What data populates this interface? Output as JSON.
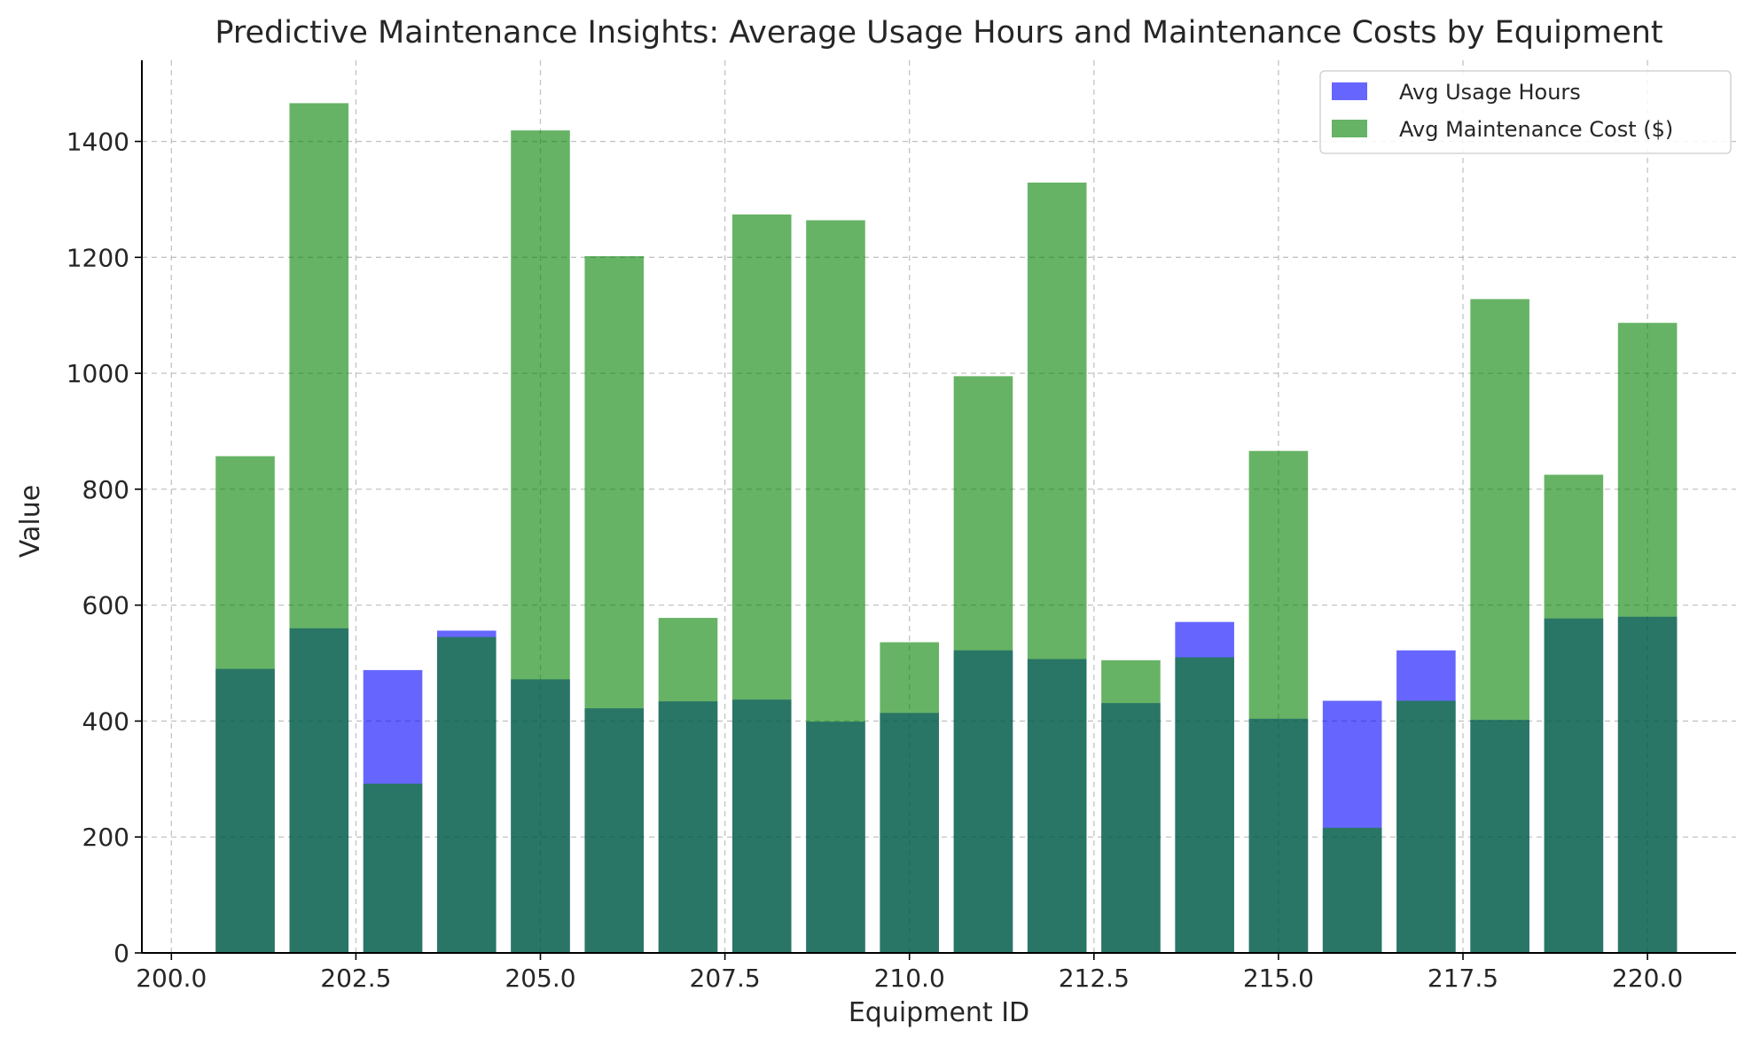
{
  "chart_data": {
    "type": "bar",
    "title": "Predictive Maintenance Insights: Average Usage Hours and Maintenance Costs by Equipment",
    "xlabel": "Equipment ID",
    "ylabel": "Value",
    "xlim": [
      199.6,
      221.2
    ],
    "ylim": [
      0,
      1540
    ],
    "x_ticks": [
      "200.0",
      "202.5",
      "205.0",
      "207.5",
      "210.0",
      "212.5",
      "215.0",
      "217.5",
      "220.0"
    ],
    "y_ticks": [
      "0",
      "200",
      "400",
      "600",
      "800",
      "1000",
      "1200",
      "1400"
    ],
    "grid": true,
    "legend_position": "top-right",
    "x": [
      201,
      202,
      203,
      204,
      205,
      206,
      207,
      208,
      209,
      210,
      211,
      212,
      213,
      214,
      215,
      216,
      217,
      218,
      219,
      220
    ],
    "series": [
      {
        "name": "Avg Usage Hours",
        "color": "#0000ff",
        "opacity": 0.6,
        "values": [
          490,
          560,
          488,
          556,
          472,
          422,
          434,
          437,
          399,
          414,
          522,
          507,
          431,
          571,
          404,
          435,
          522,
          402,
          577,
          580
        ]
      },
      {
        "name": "Avg Maintenance Cost ($)",
        "color": "#008000",
        "opacity": 0.6,
        "values": [
          857,
          1466,
          292,
          545,
          1419,
          1202,
          578,
          1274,
          1264,
          536,
          995,
          1329,
          505,
          510,
          866,
          216,
          435,
          1128,
          825,
          1087
        ]
      }
    ]
  }
}
